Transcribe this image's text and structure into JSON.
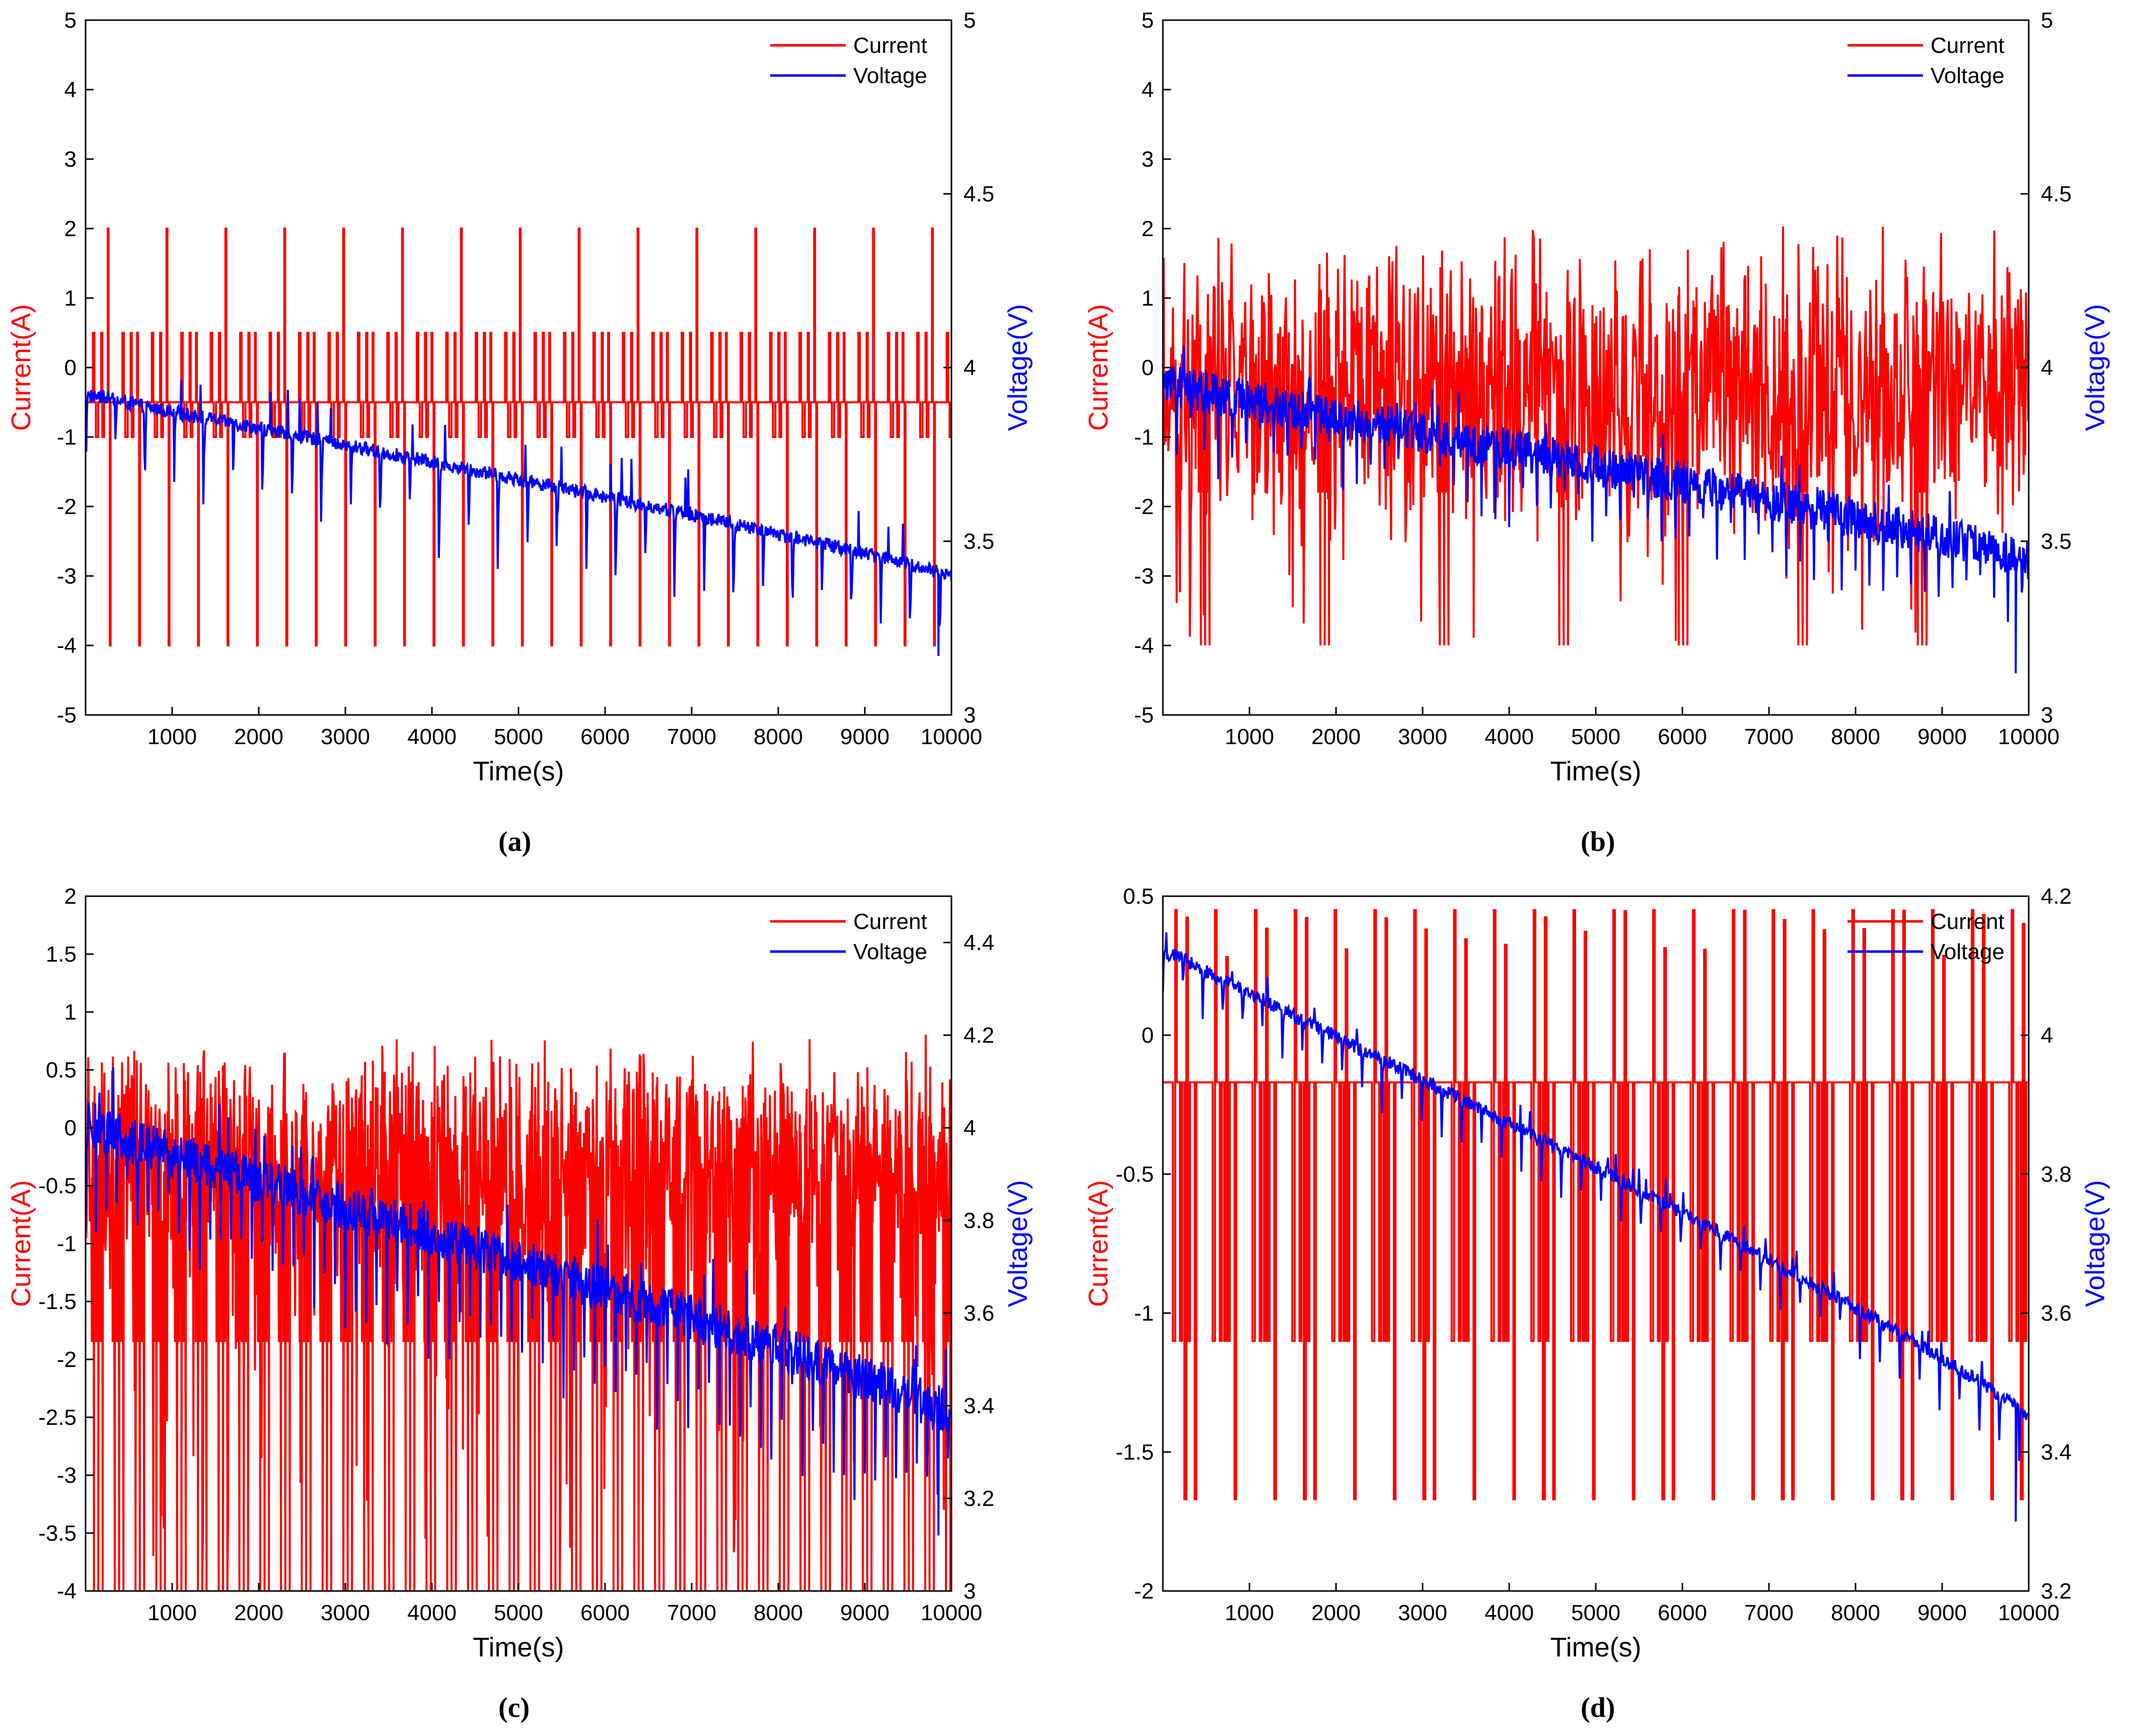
{
  "colors": {
    "current": "#ff0000",
    "voltage": "#0000ff",
    "axis": "#000000"
  },
  "chart_data": [
    {
      "id": "a",
      "type": "line",
      "caption": "(a)",
      "xlabel": "Time(s)",
      "ylabel": "Current(A)",
      "y2label": "Voltage(V)",
      "xlim": [
        0,
        10000
      ],
      "xticks": [
        1000,
        2000,
        3000,
        4000,
        5000,
        6000,
        7000,
        8000,
        9000,
        10000
      ],
      "ylim": [
        -5,
        5
      ],
      "yticks": [
        -5,
        -4,
        -3,
        -2,
        -1,
        0,
        1,
        2,
        3,
        4,
        5
      ],
      "y2lim": [
        3,
        5
      ],
      "y2ticks": [
        3,
        3.5,
        4,
        4.5,
        5
      ],
      "legend": [
        "Current",
        "Voltage"
      ],
      "legend_position": "top-right",
      "series": [
        {
          "name": "Current",
          "axis": "left",
          "pattern": "pulse",
          "base": -0.5,
          "low": -1,
          "high": 0.5,
          "peak": 2,
          "trough": -4,
          "period": 340,
          "density": 1.0
        },
        {
          "name": "Voltage",
          "axis": "right",
          "start": 3.92,
          "end": 3.4,
          "dip_depth": 0.28,
          "noise": 0.02,
          "final_dip": 3.17
        }
      ]
    },
    {
      "id": "b",
      "type": "line",
      "caption": "(b)",
      "xlabel": "Time(s)",
      "ylabel": "Current(A)",
      "y2label": "Voltage(V)",
      "xlim": [
        0,
        10000
      ],
      "xticks": [
        1000,
        2000,
        3000,
        4000,
        5000,
        6000,
        7000,
        8000,
        9000,
        10000
      ],
      "ylim": [
        -5,
        5
      ],
      "yticks": [
        -5,
        -4,
        -3,
        -2,
        -1,
        0,
        1,
        2,
        3,
        4,
        5
      ],
      "y2lim": [
        3,
        5
      ],
      "y2ticks": [
        3,
        3.5,
        4,
        4.5,
        5
      ],
      "legend": [
        "Current",
        "Voltage"
      ],
      "legend_position": "top-right",
      "series": [
        {
          "name": "Current",
          "axis": "left",
          "pattern": "random",
          "center": -0.3,
          "high": 2.1,
          "trough": -4,
          "period": 1380
        },
        {
          "name": "Voltage",
          "axis": "right",
          "start": 3.95,
          "end": 3.45,
          "dip_depth": 0.2,
          "noise": 0.06,
          "final_dip": 3.12
        }
      ]
    },
    {
      "id": "c",
      "type": "line",
      "caption": "(c)",
      "xlabel": "Time(s)",
      "ylabel": "Current(A)",
      "y2label": "Voltage(V)",
      "xlim": [
        0,
        10000
      ],
      "xticks": [
        1000,
        2000,
        3000,
        4000,
        5000,
        6000,
        7000,
        8000,
        9000,
        10000
      ],
      "ylim": [
        -4,
        2
      ],
      "yticks": [
        -4,
        -3.5,
        -3,
        -2.5,
        -2,
        -1.5,
        -1,
        -0.5,
        0,
        0.5,
        1,
        1.5,
        2
      ],
      "y2lim": [
        3,
        4.5
      ],
      "y2ticks": [
        3,
        3.2,
        3.4,
        3.6,
        3.8,
        4,
        4.2,
        4.4
      ],
      "legend": [
        "Current",
        "Voltage"
      ],
      "legend_position": "top-right",
      "series": [
        {
          "name": "Current",
          "axis": "left",
          "pattern": "random",
          "center": -0.35,
          "high": 0.85,
          "trough": -4,
          "period": 240
        },
        {
          "name": "Voltage",
          "axis": "right",
          "start": 4.0,
          "end": 3.38,
          "dip_depth": 0.25,
          "noise": 0.05,
          "final_dip": 3.12
        }
      ]
    },
    {
      "id": "d",
      "type": "line",
      "caption": "(d)",
      "xlabel": "Time(s)",
      "ylabel": "Current(A)",
      "y2label": "Voltage(V)",
      "xlim": [
        0,
        10000
      ],
      "xticks": [
        1000,
        2000,
        3000,
        4000,
        5000,
        6000,
        7000,
        8000,
        9000,
        10000
      ],
      "ylim": [
        -2,
        0.5
      ],
      "yticks": [
        -2,
        -1.5,
        -1,
        -0.5,
        0,
        0.5
      ],
      "y2lim": [
        3.2,
        4.2
      ],
      "y2ticks": [
        3.2,
        3.4,
        3.6,
        3.8,
        4,
        4.2
      ],
      "legend": [
        "Current",
        "Voltage"
      ],
      "legend_position": "top-right",
      "series": [
        {
          "name": "Current",
          "axis": "left",
          "pattern": "square",
          "base": -0.17,
          "low": -1.1,
          "high": 0.45,
          "trough": -1.67,
          "period": 460
        },
        {
          "name": "Voltage",
          "axis": "right",
          "start": 4.12,
          "end": 3.45,
          "dip_depth": 0.07,
          "noise": 0.01,
          "final_dip": 3.3
        }
      ]
    }
  ]
}
